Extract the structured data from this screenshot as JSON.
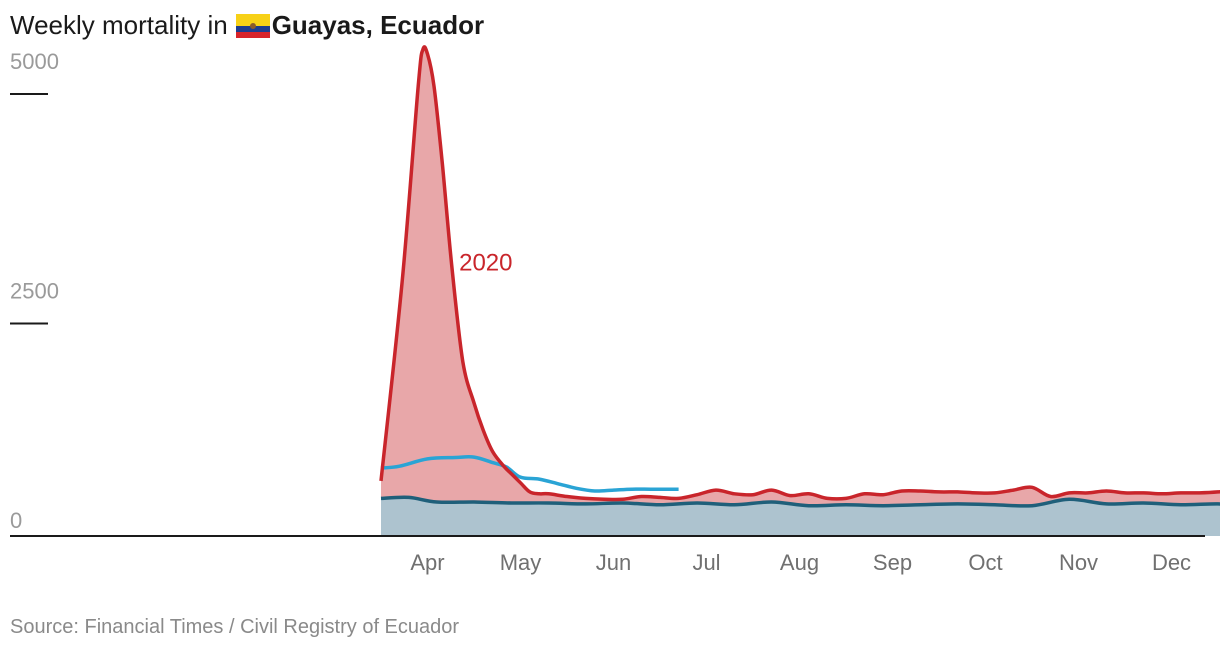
{
  "header": {
    "title_prefix": "Weekly mortality in",
    "title_region": "Guayas, Ecuador",
    "flag_icon": "ecuador-flag-icon"
  },
  "source": "Source: Financial Times / Civil Registry of Ecuador",
  "colors": {
    "series_2020": "#c9252b",
    "series_2020_fill": "#e8a7a9",
    "series_current": "#2aa4d5",
    "baseline_line": "#1f5f7a",
    "baseline_fill": "#adc3cf"
  },
  "chart_data": {
    "type": "area",
    "title": "Weekly mortality in Guayas, Ecuador",
    "xlabel": "",
    "ylabel": "",
    "ylim": [
      0,
      5000
    ],
    "x_range": [
      0,
      12
    ],
    "yticks": [
      0,
      2500,
      5000
    ],
    "ytick_labels": [
      "0",
      "2500",
      "5000"
    ],
    "xticks": [
      {
        "label": "Apr",
        "x": 3.5
      },
      {
        "label": "May",
        "x": 4.5
      },
      {
        "label": "Jun",
        "x": 5.5
      },
      {
        "label": "Jul",
        "x": 6.5
      },
      {
        "label": "Aug",
        "x": 7.5
      },
      {
        "label": "Sep",
        "x": 8.5
      },
      {
        "label": "Oct",
        "x": 9.5
      },
      {
        "label": "Nov",
        "x": 10.5
      },
      {
        "label": "Dec",
        "x": 11.5
      }
    ],
    "annotations": [
      {
        "text": "2020",
        "series": "2020"
      }
    ],
    "grid": false,
    "series": [
      {
        "name": "2020",
        "x": [
          3.0,
          3.23,
          3.4,
          3.45,
          3.5,
          3.57,
          3.66,
          3.76,
          3.88,
          4.0,
          4.1,
          4.2,
          4.32,
          4.4,
          4.5,
          4.6,
          4.7,
          4.8,
          5.0,
          5.2,
          5.4,
          5.6,
          5.8,
          6.0,
          6.2,
          6.4,
          6.6,
          6.8,
          7.0,
          7.2,
          7.4,
          7.6,
          7.8,
          8.0,
          8.2,
          8.4,
          8.6,
          8.8,
          9.0,
          9.2,
          9.4,
          9.6,
          9.8,
          10.0,
          10.2,
          10.4,
          10.6,
          10.8,
          11.0,
          11.2,
          11.4,
          11.6,
          11.8,
          12.0,
          12.2
        ],
        "values": [
          600,
          2800,
          4900,
          5300,
          5250,
          4900,
          4050,
          2950,
          1900,
          1450,
          1150,
          920,
          760,
          680,
          580,
          480,
          460,
          460,
          430,
          410,
          400,
          400,
          430,
          420,
          410,
          450,
          500,
          460,
          450,
          500,
          440,
          460,
          410,
          410,
          460,
          450,
          490,
          490,
          480,
          480,
          470,
          470,
          500,
          530,
          430,
          470,
          470,
          490,
          470,
          470,
          460,
          470,
          470,
          480,
          500
        ]
      },
      {
        "name": "",
        "x": [
          3.0,
          3.2,
          3.5,
          3.8,
          4.0,
          4.2,
          4.35,
          4.5,
          4.7,
          4.9,
          5.1,
          5.3,
          5.5,
          5.7,
          5.9,
          6.1,
          6.2
        ],
        "values": [
          740,
          760,
          840,
          855,
          860,
          800,
          750,
          640,
          620,
          570,
          520,
          490,
          500,
          510,
          510,
          510,
          510
        ]
      },
      {
        "name": "",
        "x": [
          3.0,
          3.3,
          3.6,
          4.0,
          4.4,
          4.8,
          5.2,
          5.6,
          6.0,
          6.4,
          6.8,
          7.2,
          7.6,
          8.0,
          8.4,
          8.8,
          9.2,
          9.6,
          10.0,
          10.4,
          10.8,
          11.2,
          11.6,
          12.0,
          12.2
        ],
        "values": [
          410,
          420,
          370,
          370,
          360,
          360,
          350,
          360,
          340,
          360,
          340,
          370,
          330,
          340,
          330,
          340,
          350,
          340,
          330,
          400,
          350,
          360,
          340,
          350,
          330
        ]
      }
    ]
  }
}
